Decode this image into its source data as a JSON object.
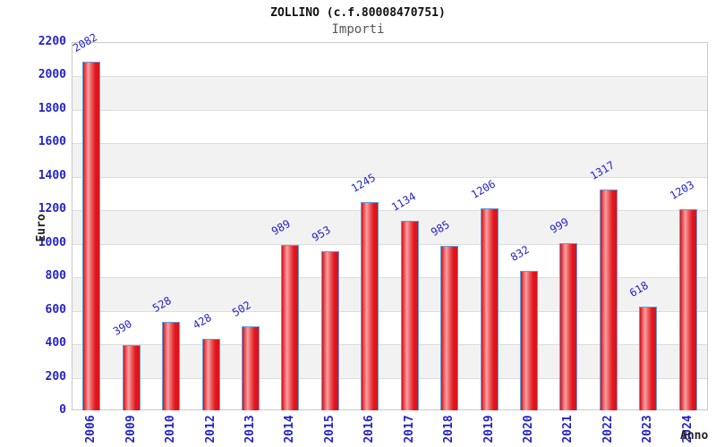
{
  "header": {
    "title": "ZOLLINO (c.f.80008470751)",
    "subtitle": "Importi"
  },
  "axes": {
    "y_label": "Euro",
    "x_label": "Anno"
  },
  "colors": {
    "tick_label_blue": "#2323cc",
    "bar_red": "#e2161e",
    "bar_highlight": "#f5a0a0",
    "bar_border_blue": "#5b9fe0",
    "band_gray": "#f2f2f2",
    "grid_line": "#dcdcdc",
    "title_color": "#111111",
    "subtitle_color": "#555555",
    "axis_title_color": "#222222"
  },
  "chart_data": {
    "type": "bar",
    "title": "ZOLLINO (c.f.80008470751)",
    "subtitle": "Importi",
    "xlabel": "Anno",
    "ylabel": "Euro",
    "categories": [
      "2006",
      "2009",
      "2010",
      "2012",
      "2013",
      "2014",
      "2015",
      "2016",
      "2017",
      "2018",
      "2019",
      "2020",
      "2021",
      "2022",
      "2023",
      "2024"
    ],
    "values": [
      2082,
      390,
      528,
      428,
      502,
      989,
      953,
      1245,
      1134,
      985,
      1206,
      832,
      999,
      1317,
      618,
      1203
    ],
    "ylim": [
      0,
      2200
    ],
    "ytick_step": 200,
    "yticks": [
      0,
      200,
      400,
      600,
      800,
      1000,
      1200,
      1400,
      1600,
      1800,
      2000,
      2200
    ],
    "grid": "horizontal alternating white/gray bands every 200 with light gridlines",
    "legend_position": "none",
    "bar_value_label_rotation_deg": -30,
    "x_tick_rotation_deg": -90
  }
}
